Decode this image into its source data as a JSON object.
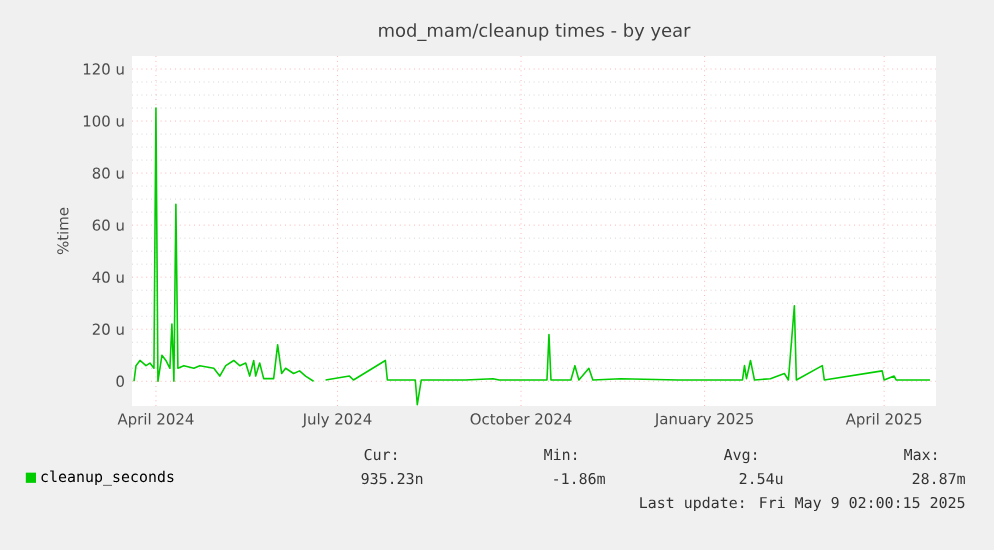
{
  "chart_data": {
    "type": "line",
    "title": "mod_mam/cleanup times - by year",
    "ylabel": "%time",
    "xlim": [
      "2024-03-20",
      "2025-04-27"
    ],
    "xticks": [
      {
        "value": "2024-04-01",
        "label": "April 2024"
      },
      {
        "value": "2024-07-01",
        "label": "July 2024"
      },
      {
        "value": "2024-10-01",
        "label": "October 2024"
      },
      {
        "value": "2025-01-01",
        "label": "January 2025"
      },
      {
        "value": "2025-04-01",
        "label": "April 2025"
      }
    ],
    "ylim": [
      -9.5,
      125
    ],
    "yticks": [
      {
        "value": 0,
        "label": "0"
      },
      {
        "value": 20,
        "label": "20 u"
      },
      {
        "value": 40,
        "label": "40 u"
      },
      {
        "value": 60,
        "label": "60 u"
      },
      {
        "value": 80,
        "label": "80 u"
      },
      {
        "value": 100,
        "label": "100 u"
      },
      {
        "value": 120,
        "label": "120 u"
      }
    ],
    "grid": true,
    "legend": "bottom left",
    "marker": "none",
    "line_style": "solid",
    "x": [
      "2024-03-21",
      "2024-03-22",
      "2024-03-24",
      "2024-03-27",
      "2024-03-29",
      "2024-03-31",
      "2024-04-01",
      "2024-04-02",
      "2024-04-04",
      "2024-04-06",
      "2024-04-08",
      "2024-04-09",
      "2024-04-10",
      "2024-04-11",
      "2024-04-12",
      "2024-04-15",
      "2024-04-20",
      "2024-04-23",
      "2024-04-30",
      "2024-05-03",
      "2024-05-06",
      "2024-05-08",
      "2024-05-10",
      "2024-05-13",
      "2024-05-16",
      "2024-05-18",
      "2024-05-20",
      "2024-05-21",
      "2024-05-23",
      "2024-05-25",
      "2024-05-30",
      "2024-06-01",
      "2024-06-03",
      "2024-06-05",
      "2024-06-09",
      "2024-06-12",
      "2024-06-15",
      "2024-06-19",
      "2024-06-22",
      "2024-06-25",
      "2024-07-07",
      "2024-07-09",
      "2024-07-25",
      "2024-07-26",
      "2024-08-09",
      "2024-08-10",
      "2024-08-12",
      "2024-09-03",
      "2024-09-17",
      "2024-09-20",
      "2024-10-14",
      "2024-10-15",
      "2024-10-16",
      "2024-10-26",
      "2024-10-28",
      "2024-10-30",
      "2024-11-04",
      "2024-11-06",
      "2024-11-20",
      "2024-12-19",
      "2025-01-20",
      "2025-01-21",
      "2025-01-22",
      "2025-01-24",
      "2025-01-26",
      "2025-02-03",
      "2025-02-10",
      "2025-02-12",
      "2025-02-15",
      "2025-02-16",
      "2025-03-01",
      "2025-03-02",
      "2025-03-31",
      "2025-04-01",
      "2025-04-06",
      "2025-04-07",
      "2025-04-24"
    ],
    "series": [
      {
        "name": "cleanup_seconds",
        "color": "#00cc00",
        "values": [
          0,
          6,
          8,
          6,
          7,
          5,
          105,
          0,
          10,
          8,
          5,
          22,
          0,
          68,
          5,
          6,
          5,
          6,
          5,
          2,
          6,
          7,
          8,
          6,
          7,
          2,
          8,
          2,
          7,
          1,
          1,
          14,
          3,
          5,
          3,
          4,
          2,
          0,
          null,
          0.5,
          2,
          0.5,
          8,
          0.5,
          0.5,
          -9,
          0.5,
          0.5,
          1,
          0.5,
          0.5,
          18,
          0.5,
          0.5,
          6,
          0.5,
          5,
          0.5,
          1,
          0.5,
          0.5,
          6,
          1,
          8,
          0.5,
          1,
          3,
          0.5,
          29,
          0.5,
          6,
          0.5,
          4,
          0.5,
          2,
          0.5,
          0.5
        ]
      }
    ],
    "annotations": [
      "Cur:",
      "Min:",
      "Avg:",
      "Max:",
      "935.23n",
      "-1.86m",
      "2.54u",
      "28.87m",
      "Last update: Fri May  9 02:00:15 2025"
    ]
  }
}
